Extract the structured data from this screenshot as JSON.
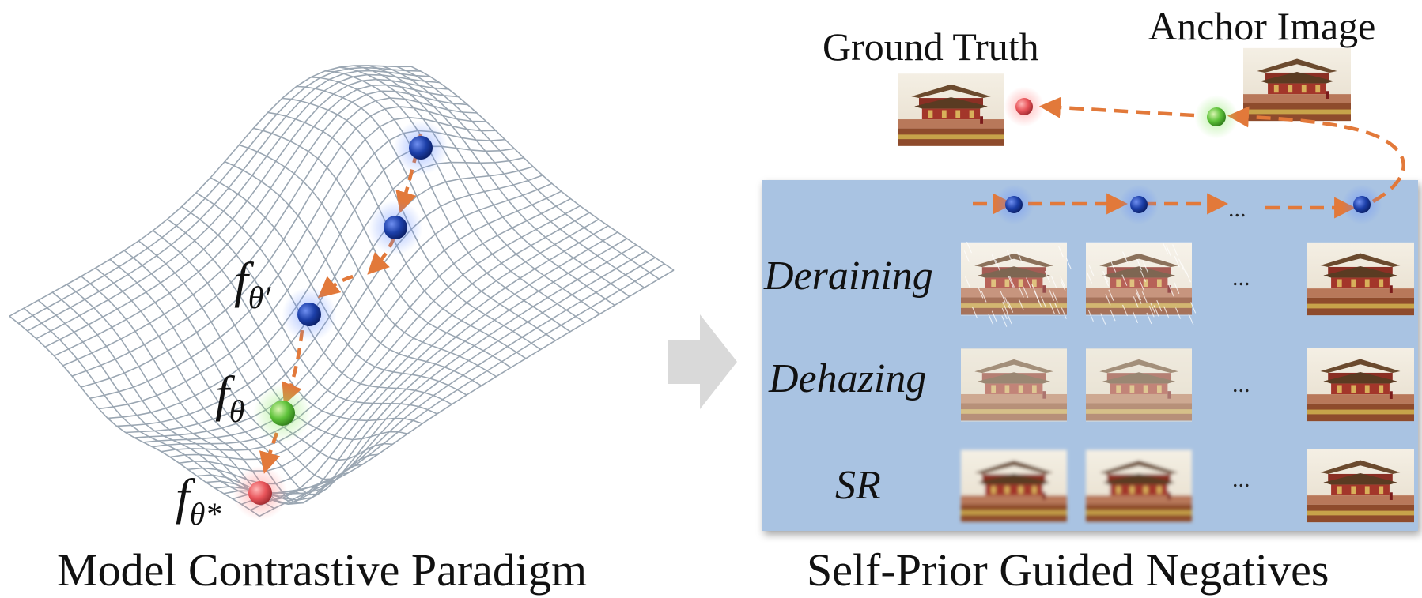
{
  "left_panel": {
    "caption": "Model Contrastive Paradigm",
    "labels": {
      "f_theta_prime": {
        "base": "f",
        "sub": "θ′"
      },
      "f_theta": {
        "base": "f",
        "sub": "θ"
      },
      "f_theta_star": {
        "base": "f",
        "sub": "θ*"
      }
    }
  },
  "right_panel": {
    "caption": "Self-Prior Guided Negatives",
    "ground_truth_label": "Ground Truth",
    "anchor_label": "Anchor Image",
    "rows": [
      {
        "label": "Deraining"
      },
      {
        "label": "Dehazing"
      },
      {
        "label": "SR"
      }
    ],
    "ellipsis": "..."
  },
  "colors": {
    "mesh": "#9aa6b2",
    "arrow": "#e2793a",
    "ball_blue": "#1c3fa8",
    "ball_green": "#5ec23a",
    "ball_red": "#e8545a",
    "panel_bg": "#a9c3e2",
    "transition_arrow": "#d9d9d9"
  }
}
